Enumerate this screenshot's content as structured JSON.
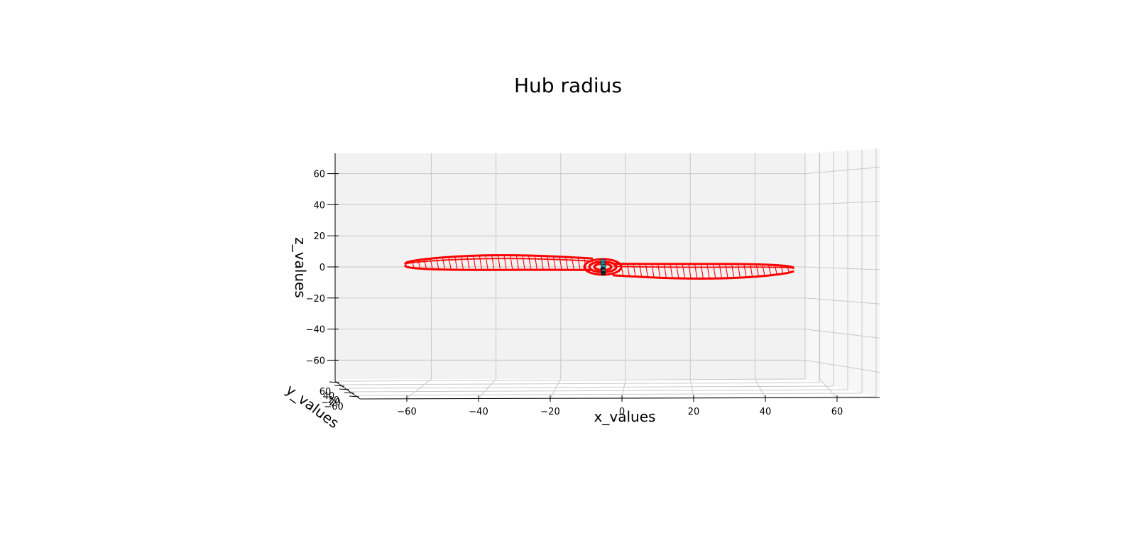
{
  "chart_data": {
    "type": "scatter",
    "title": "Hub radius",
    "xlabel": "x_values",
    "ylabel": "y_values",
    "zlabel": "z_values",
    "xlim": [
      -70,
      70
    ],
    "ylim": [
      -70,
      70
    ],
    "zlim": [
      -70,
      70
    ],
    "x_ticks": [
      "−60",
      "−40",
      "−20",
      "0",
      "20",
      "40",
      "60"
    ],
    "z_ticks": [
      "−60",
      "−40",
      "−20",
      "0",
      "20",
      "40",
      "60"
    ],
    "y_ticks": [
      "60",
      "40",
      "20",
      "−20",
      "−60"
    ],
    "grid": true,
    "colors": {
      "blade": "#ff0000",
      "hub": "#1f9bb0",
      "center": "#1a1a1a"
    },
    "series": [
      {
        "values": "propeller blade surface points (two blades, span x from -68 to 52, z roughly -5 to 6)"
      },
      {
        "values": "hub ring points centered near x = -7, z = 0"
      },
      {
        "values": "hub cross-section points near x = -7, z from -4 to 2"
      }
    ]
  }
}
